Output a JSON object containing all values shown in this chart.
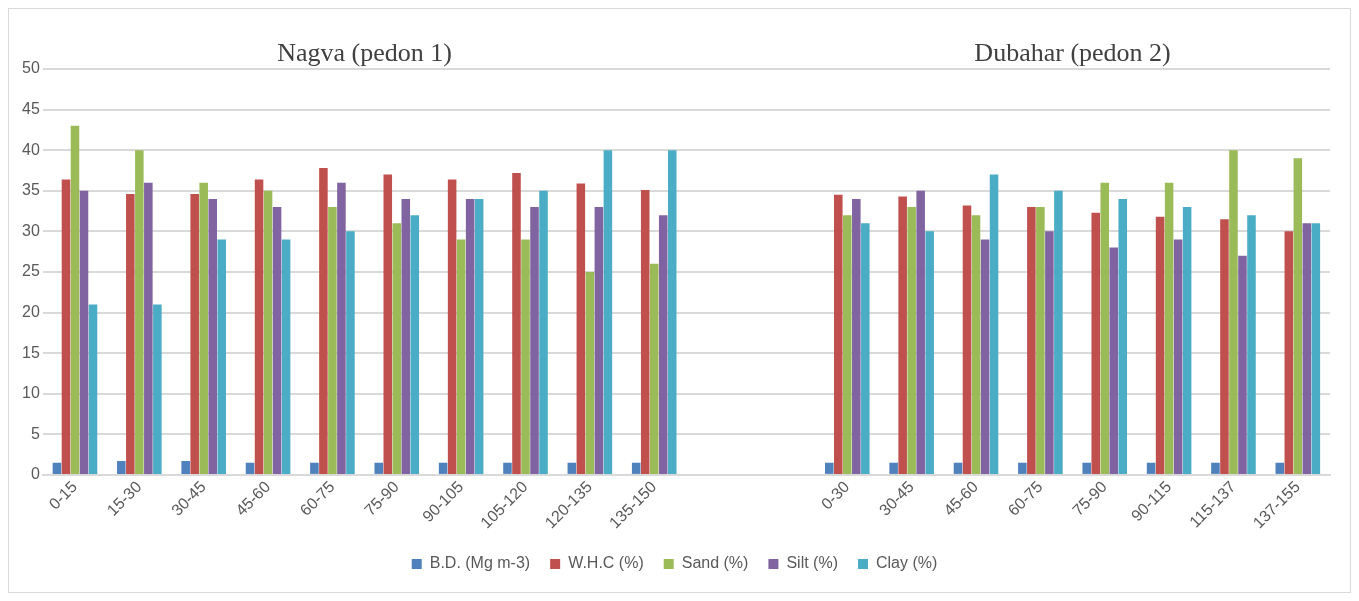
{
  "chart_data": {
    "type": "bar",
    "annotations": [
      "Nagva (pedon 1)",
      "Dubahar (pedon 2)"
    ],
    "categories": [
      "0-15",
      "15-30",
      "30-45",
      "45-60",
      "60-75",
      "75-90",
      "90-105",
      "105-120",
      "120-135",
      "135-150",
      null,
      null,
      "0-30",
      "30-45",
      "45-60",
      "60-75",
      "75-90",
      "90-115",
      "115-137",
      "137-155"
    ],
    "series": [
      {
        "name": "B.D. (Mg m-3)",
        "color": "#4f81bd",
        "values": [
          1.5,
          1.7,
          1.7,
          1.5,
          1.5,
          1.5,
          1.5,
          1.5,
          1.5,
          1.5,
          null,
          null,
          1.5,
          1.5,
          1.5,
          1.5,
          1.5,
          1.5,
          1.5,
          1.5
        ]
      },
      {
        "name": "W.H.C (%)",
        "color": "#c0504d",
        "values": [
          36.4,
          34.6,
          34.6,
          36.4,
          37.8,
          37,
          36.4,
          37.2,
          35.9,
          35.1,
          null,
          null,
          34.5,
          34.3,
          33.2,
          33,
          32.3,
          31.8,
          31.5,
          30
        ]
      },
      {
        "name": "Sand (%)",
        "color": "#9bbb59",
        "values": [
          43,
          40,
          36,
          35,
          33,
          31,
          29,
          29,
          25,
          26,
          null,
          null,
          32,
          33,
          32,
          33,
          36,
          36,
          40,
          39
        ]
      },
      {
        "name": "Silt (%)",
        "color": "#8064a2",
        "values": [
          35,
          36,
          34,
          33,
          36,
          34,
          34,
          33,
          33,
          32,
          null,
          null,
          34,
          35,
          29,
          30,
          28,
          29,
          27,
          31
        ]
      },
      {
        "name": "Clay (%)",
        "color": "#4bacc6",
        "values": [
          21,
          21,
          29,
          29,
          30,
          32,
          34,
          35,
          40,
          40,
          null,
          null,
          31,
          30,
          37,
          35,
          34,
          33,
          32,
          31
        ]
      }
    ],
    "ylim": [
      0,
      50
    ],
    "yticks": [
      0,
      5,
      10,
      15,
      20,
      25,
      30,
      35,
      40,
      45,
      50
    ],
    "grid": "y",
    "legend": "bottom"
  }
}
